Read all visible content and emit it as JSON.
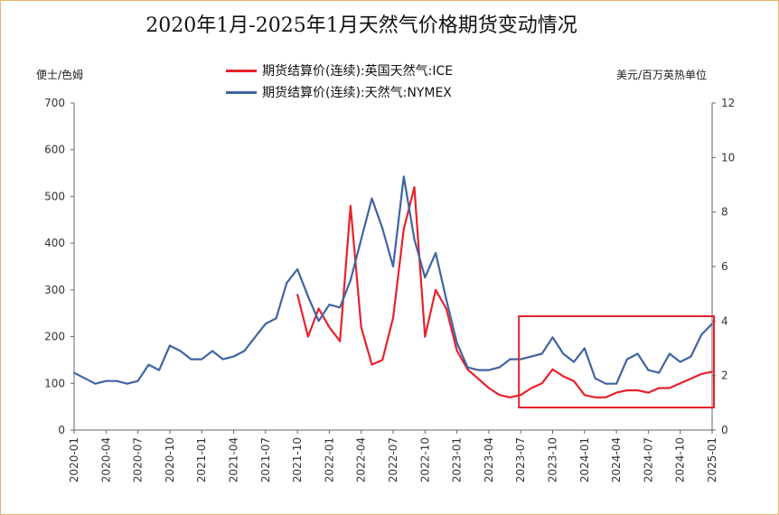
{
  "chart_data": {
    "type": "line",
    "title": "2020年1月-2025年1月天然气价格期货变动情况",
    "ylabel_left": "便士/色姆",
    "ylabel_right": "美元/百万英热单位",
    "ylim_left": [
      0,
      700
    ],
    "ylim_right": [
      0,
      12
    ],
    "yticks_left": [
      "0",
      "100",
      "200",
      "300",
      "400",
      "500",
      "600",
      "700"
    ],
    "yticks_right": [
      "0",
      "2",
      "4",
      "6",
      "8",
      "10",
      "12"
    ],
    "xticks": [
      "2020-01",
      "2020-04",
      "2020-07",
      "2020-10",
      "2021-01",
      "2021-04",
      "2021-07",
      "2021-10",
      "2022-01",
      "2022-04",
      "2022-07",
      "2022-10",
      "2023-01",
      "2023-04",
      "2023-07",
      "2023-10",
      "2024-01",
      "2024-04",
      "2024-07",
      "2024-10",
      "2025-01"
    ],
    "series": [
      {
        "name": "期货结算价(连续):英国天然气:ICE",
        "axis": "left",
        "color": "#e8212b",
        "x": [
          "2021-10",
          "2021-11",
          "2021-12",
          "2022-01",
          "2022-02",
          "2022-03",
          "2022-04",
          "2022-05",
          "2022-06",
          "2022-07",
          "2022-08",
          "2022-09",
          "2022-10",
          "2022-11",
          "2022-12",
          "2023-01",
          "2023-02",
          "2023-03",
          "2023-04",
          "2023-05",
          "2023-06",
          "2023-07",
          "2023-08",
          "2023-09",
          "2023-10",
          "2023-11",
          "2023-12",
          "2024-01",
          "2024-02",
          "2024-03",
          "2024-04",
          "2024-05",
          "2024-06",
          "2024-07",
          "2024-08",
          "2024-09",
          "2024-10",
          "2024-11",
          "2024-12",
          "2025-01"
        ],
        "values": [
          290,
          200,
          260,
          220,
          190,
          480,
          220,
          140,
          150,
          240,
          430,
          520,
          200,
          300,
          260,
          170,
          130,
          110,
          90,
          75,
          70,
          75,
          90,
          100,
          130,
          115,
          105,
          75,
          70,
          70,
          80,
          85,
          85,
          80,
          90,
          90,
          100,
          110,
          120,
          125
        ]
      },
      {
        "name": "期货结算价(连续):天然气:NYMEX",
        "axis": "right",
        "color": "#3f64a3",
        "x": [
          "2020-01",
          "2020-02",
          "2020-03",
          "2020-04",
          "2020-05",
          "2020-06",
          "2020-07",
          "2020-08",
          "2020-09",
          "2020-10",
          "2020-11",
          "2020-12",
          "2021-01",
          "2021-02",
          "2021-03",
          "2021-04",
          "2021-05",
          "2021-06",
          "2021-07",
          "2021-08",
          "2021-09",
          "2021-10",
          "2021-11",
          "2021-12",
          "2022-01",
          "2022-02",
          "2022-03",
          "2022-04",
          "2022-05",
          "2022-06",
          "2022-07",
          "2022-08",
          "2022-09",
          "2022-10",
          "2022-11",
          "2022-12",
          "2023-01",
          "2023-02",
          "2023-03",
          "2023-04",
          "2023-05",
          "2023-06",
          "2023-07",
          "2023-08",
          "2023-09",
          "2023-10",
          "2023-11",
          "2023-12",
          "2024-01",
          "2024-02",
          "2024-03",
          "2024-04",
          "2024-05",
          "2024-06",
          "2024-07",
          "2024-08",
          "2024-09",
          "2024-10",
          "2024-11",
          "2024-12",
          "2025-01"
        ],
        "values": [
          2.1,
          1.9,
          1.7,
          1.8,
          1.8,
          1.7,
          1.8,
          2.4,
          2.2,
          3.1,
          2.9,
          2.6,
          2.6,
          2.9,
          2.6,
          2.7,
          2.9,
          3.4,
          3.9,
          4.1,
          5.4,
          5.9,
          4.9,
          4.0,
          4.6,
          4.5,
          5.5,
          7.0,
          8.5,
          7.4,
          6.0,
          9.3,
          7.0,
          5.6,
          6.5,
          4.8,
          3.2,
          2.3,
          2.2,
          2.2,
          2.3,
          2.6,
          2.6,
          2.7,
          2.8,
          3.4,
          2.8,
          2.5,
          3.0,
          1.9,
          1.7,
          1.7,
          2.6,
          2.8,
          2.2,
          2.1,
          2.8,
          2.5,
          2.7,
          3.5,
          3.9
        ]
      }
    ]
  },
  "highlight_box": {
    "from": "2023-07",
    "to": "2025-01",
    "color": "#e8212b"
  }
}
